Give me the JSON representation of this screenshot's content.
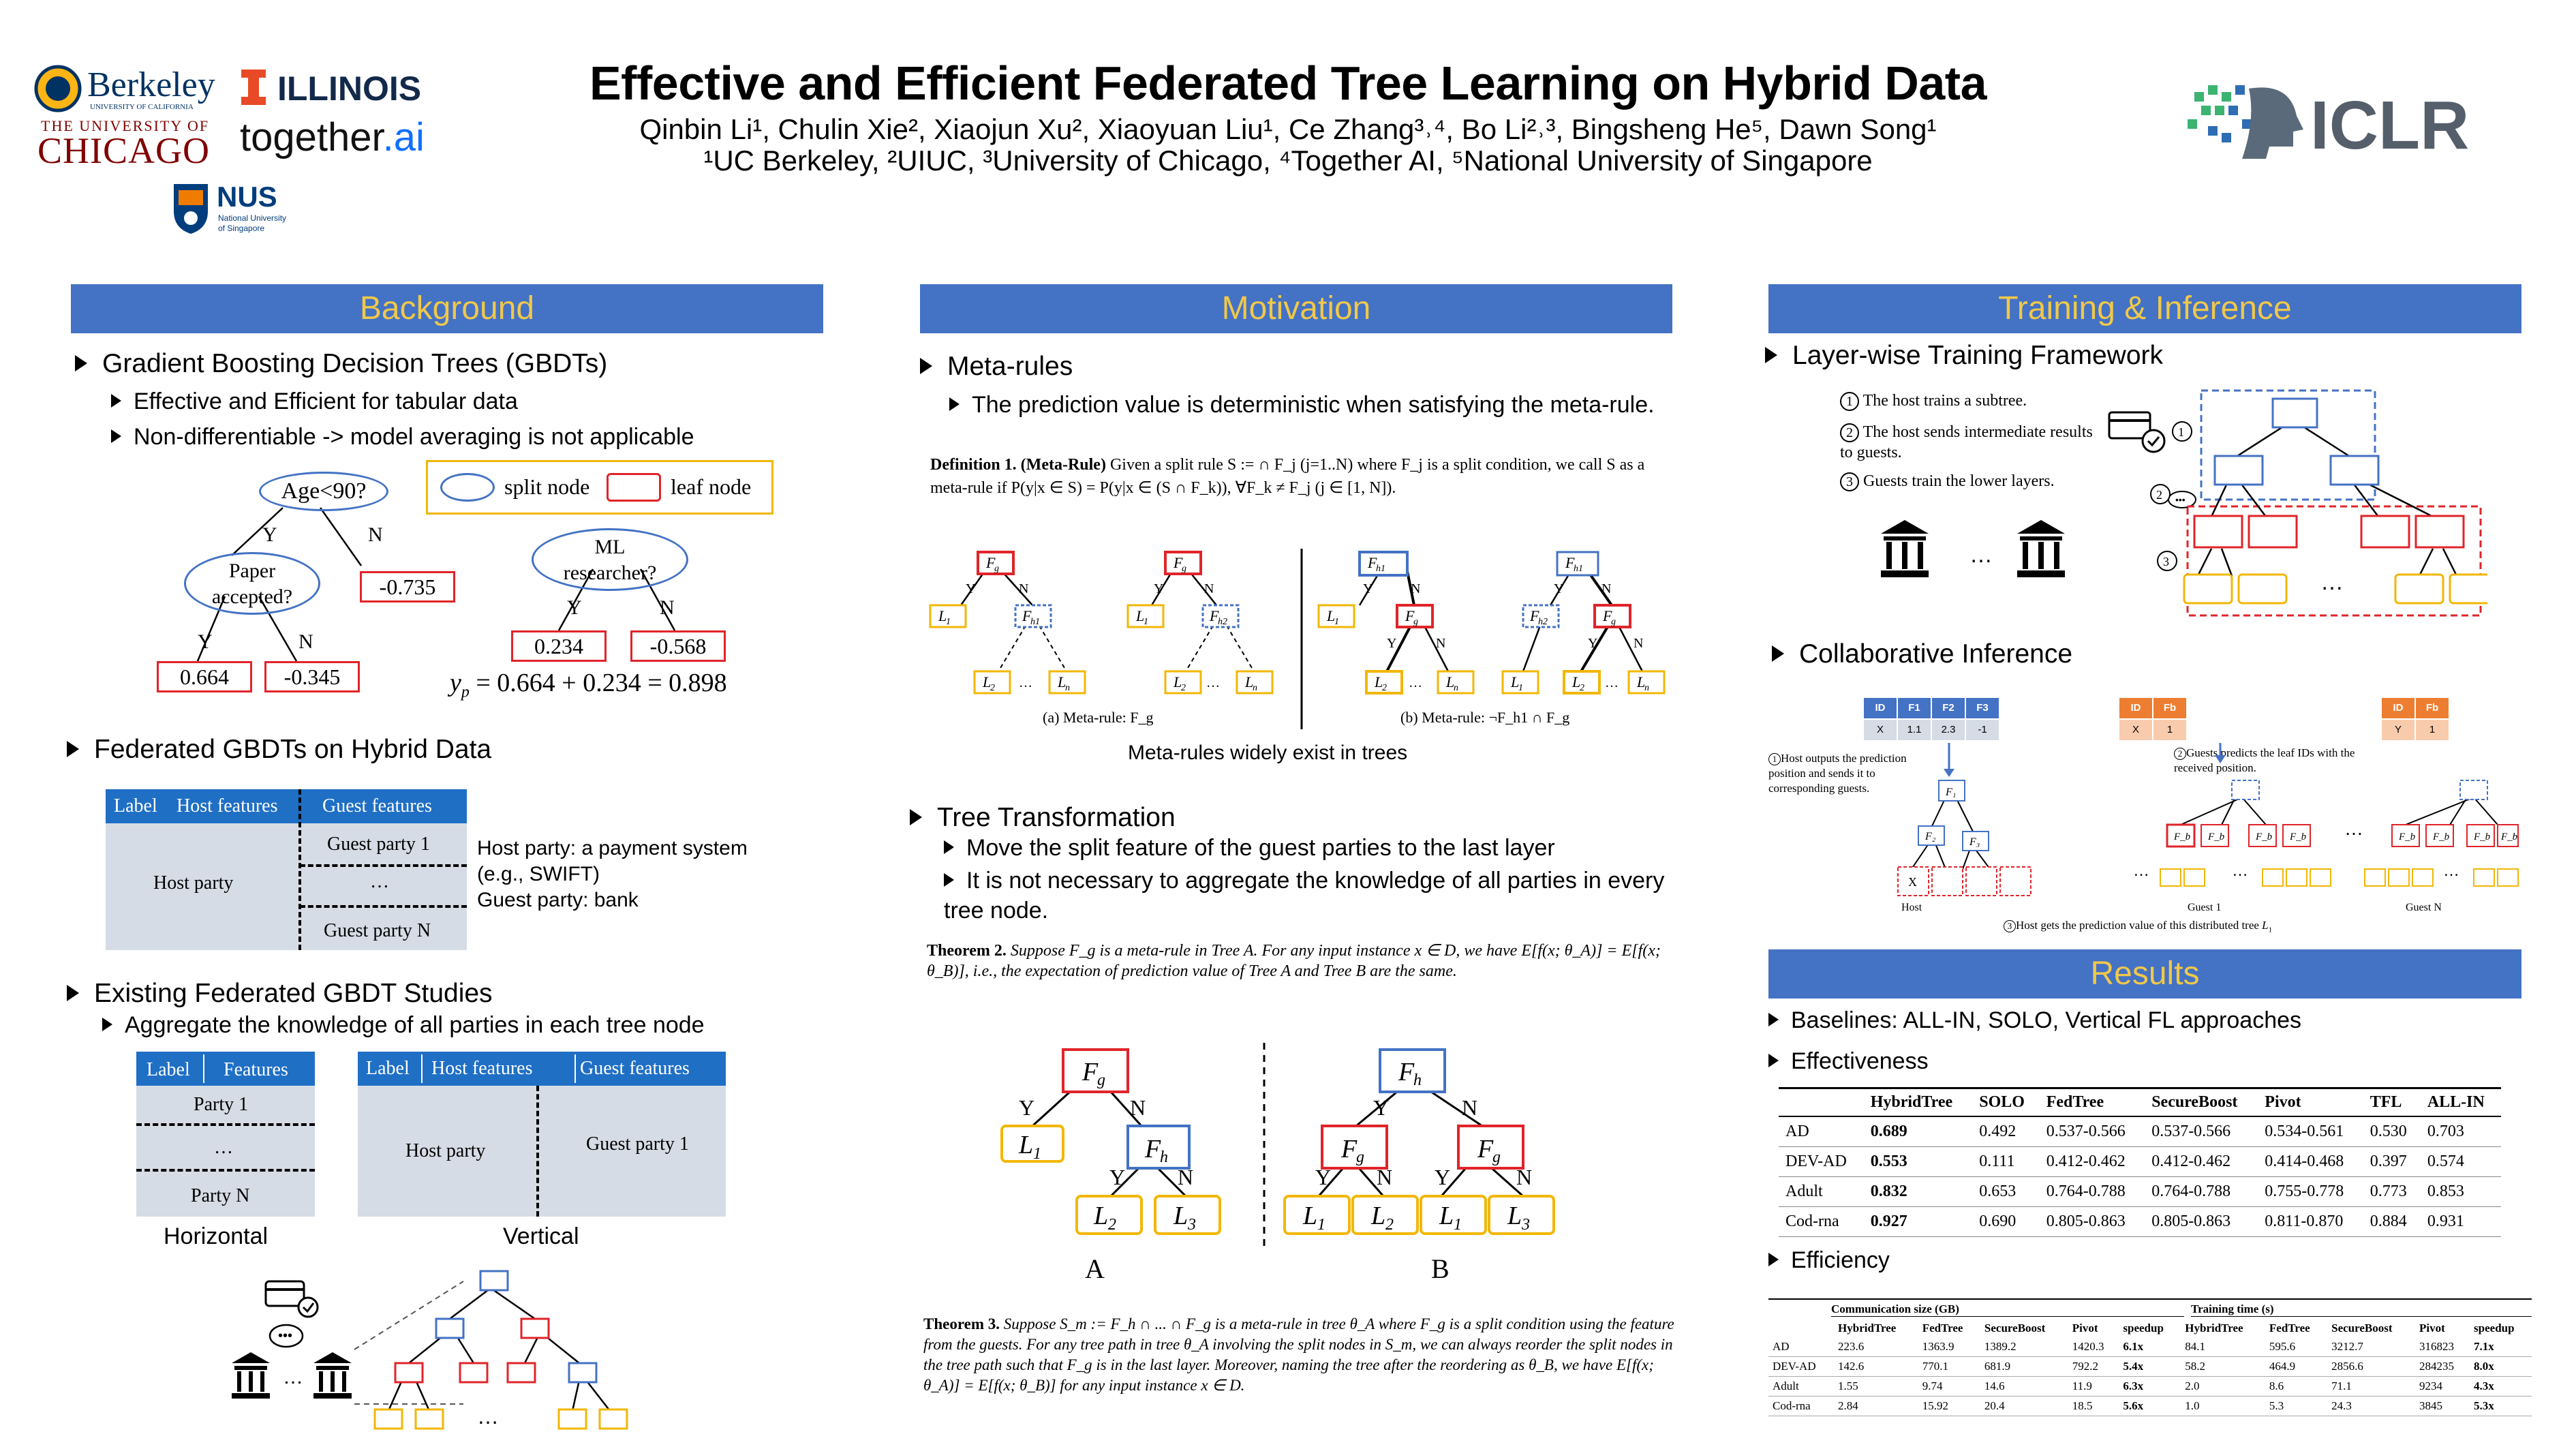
{
  "header": {
    "title": "Effective and Efficient Federated Tree Learning on Hybrid Data",
    "authors": "Qinbin Li¹, Chulin Xie², Xiaojun Xu², Xiaoyuan Liu¹, Ce Zhang³˒⁴, Bo Li²˒³, Bingsheng He⁵, Dawn Song¹",
    "affiliations": "¹UC Berkeley, ²UIUC, ³University of Chicago, ⁴Together AI, ⁵National University of Singapore",
    "logos": {
      "berkeley": "Berkeley",
      "berkeley_sub": "UNIVERSITY OF CALIFORNIA",
      "illinois": "ILLINOIS",
      "chicago_top": "THE UNIVERSITY OF",
      "chicago": "CHICAGO",
      "together": "together",
      "together_ai": ".ai",
      "nus": "NUS",
      "nus_sub1": "National University",
      "nus_sub2": "of Singapore",
      "iclr": "ICLR"
    }
  },
  "background": {
    "header": "Background",
    "gbdt": "Gradient Boosting Decision Trees (GBDTs)",
    "gbdt_sub1": "Effective and Efficient for tabular data",
    "gbdt_sub2": "Non-differentiable -> model averaging is not applicable",
    "legend_split": "split node",
    "legend_leaf": "leaf node",
    "tree1_root": "Age<90?",
    "tree1_inner": "Paper accepted?",
    "tree1_leaves": [
      "0.664",
      "-0.345",
      "-0.735"
    ],
    "tree2_root": "ML researcher?",
    "tree2_leaves": [
      "0.234",
      "-0.568"
    ],
    "yes": "Y",
    "no": "N",
    "yp_eq": "= 0.664 + 0.234 = 0.898",
    "federated": "Federated GBDTs on Hybrid Data",
    "tbl_label": "Label",
    "tbl_host_features": "Host features",
    "tbl_guest_features": "Guest features",
    "host_party": "Host party",
    "guest_party_1": "Guest party 1",
    "ellipsis": "…",
    "guest_party_n": "Guest party N",
    "host_desc1": "Host party: a payment system",
    "host_desc2": "(e.g., SWIFT)",
    "guest_desc": "Guest party: bank",
    "existing": "Existing Federated GBDT Studies",
    "existing_sub": "Aggregate the knowledge of all parties in each tree node",
    "h_label": "Label",
    "h_features": "Features",
    "h_party1": "Party 1",
    "h_partyn": "Party N",
    "horizontal": "Horizontal",
    "v_label": "Label",
    "v_host": "Host features",
    "v_guest": "Guest features",
    "v_host_party": "Host party",
    "v_guest_party": "Guest party 1",
    "vertical": "Vertical",
    "bottom_ellipsis": "…"
  },
  "motivation": {
    "header": "Motivation",
    "meta": "Meta-rules",
    "meta_sub": "The prediction value is deterministic when satisfying the meta-rule.",
    "def_label": "Definition 1.",
    "def_name": "(Meta-Rule)",
    "def_text": "Given a split rule S := ∩ F_j (j=1..N) where F_j is a split condition, we call S as a meta-rule if P(y|x ∈ S) = P(y|x ∈ (S ∩ F_k)), ∀F_k ≠ F_j (j ∈ [1, N]).",
    "caption_a": "(a) Meta-rule: F_g",
    "caption_b": "(b) Meta-rule: ¬F_h1 ∩ F_g",
    "meta_widely": "Meta-rules widely exist in trees",
    "transform": "Tree Transformation",
    "transform_sub1": "Move the split feature of the guest parties to the last layer",
    "transform_sub2": "It is not necessary to aggregate the knowledge of all parties in every tree node.",
    "thm2_label": "Theorem 2.",
    "thm2_text": "Suppose F_g is a meta-rule in Tree A. For any input instance x ∈ D, we have E[f(x; θ_A)] = E[f(x; θ_B)], i.e., the expectation of prediction value of Tree A and Tree B are the same.",
    "tree_a": "A",
    "tree_b": "B",
    "thm3_label": "Theorem 3.",
    "thm3_text": "Suppose S_m := F_h ∩ ... ∩ F_g is a meta-rule in tree θ_A where F_g is a split condition using the feature from the guests. For any tree path in tree θ_A involving the split nodes in S_m, we can always reorder the split nodes in the tree path such that F_g is in the last layer. Moreover, naming the tree after the reordering as θ_B, we have E[f(x; θ_A)] = E[f(x; θ_B)] for any input instance x ∈ D."
  },
  "training": {
    "header": "Training & Inference",
    "layerwise": "Layer-wise Training Framework",
    "step1": "The host trains a subtree.",
    "step2": "The host sends intermediate results to guests.",
    "step3": "Guests train the lower layers.",
    "collab": "Collaborative Inference",
    "inf1": "Host outputs the prediction position and sends it to corresponding guests.",
    "inf2": "Guests predicts the leaf IDs with the received position.",
    "inf3": "Host gets the prediction value of this distributed tree",
    "host_label": "Host",
    "guest1_label": "Guest 1",
    "guestn_label": "Guest N",
    "host_table": {
      "headers": [
        "ID",
        "F1",
        "F2",
        "F3"
      ],
      "row": [
        "X",
        "1.1",
        "2.3",
        "-1"
      ]
    },
    "guest1_table": {
      "headers": [
        "ID",
        "Fb"
      ],
      "row": [
        "X",
        "1"
      ]
    },
    "guestn_table": {
      "headers": [
        "ID",
        "Fb"
      ],
      "row": [
        "Y",
        "1"
      ]
    }
  },
  "results": {
    "header": "Results",
    "baselines": "Baselines: ALL-IN, SOLO, Vertical FL approaches",
    "effectiveness": "Effectiveness",
    "eff_headers": [
      "",
      "HybridTree",
      "SOLO",
      "FedTree",
      "SecureBoost",
      "Pivot",
      "TFL",
      "ALL-IN"
    ],
    "eff_rows": [
      [
        "AD",
        "0.689",
        "0.492",
        "0.537-0.566",
        "0.537-0.566",
        "0.534-0.561",
        "0.530",
        "0.703"
      ],
      [
        "DEV-AD",
        "0.553",
        "0.111",
        "0.412-0.462",
        "0.412-0.462",
        "0.414-0.468",
        "0.397",
        "0.574"
      ],
      [
        "Adult",
        "0.832",
        "0.653",
        "0.764-0.788",
        "0.764-0.788",
        "0.755-0.778",
        "0.773",
        "0.853"
      ],
      [
        "Cod-rna",
        "0.927",
        "0.690",
        "0.805-0.863",
        "0.805-0.863",
        "0.811-0.870",
        "0.884",
        "0.931"
      ]
    ],
    "efficiency": "Efficiency",
    "comm_title": "Communication size (GB)",
    "time_title": "Training time (s)",
    "effi_headers": [
      "",
      "HybridTree",
      "FedTree",
      "SecureBoost",
      "Pivot",
      "speedup",
      "HybridTree",
      "FedTree",
      "SecureBoost",
      "Pivot",
      "speedup"
    ],
    "effi_rows": [
      [
        "AD",
        "223.6",
        "1363.9",
        "1389.2",
        "1420.3",
        "6.1x",
        "84.1",
        "595.6",
        "3212.7",
        "316823",
        "7.1x"
      ],
      [
        "DEV-AD",
        "142.6",
        "770.1",
        "681.9",
        "792.2",
        "5.4x",
        "58.2",
        "464.9",
        "2856.6",
        "284235",
        "8.0x"
      ],
      [
        "Adult",
        "1.55",
        "9.74",
        "14.6",
        "11.9",
        "6.3x",
        "2.0",
        "8.6",
        "71.1",
        "9234",
        "4.3x"
      ],
      [
        "Cod-rna",
        "2.84",
        "15.92",
        "20.4",
        "18.5",
        "5.6x",
        "1.0",
        "5.3",
        "24.3",
        "3845",
        "5.3x"
      ]
    ]
  }
}
